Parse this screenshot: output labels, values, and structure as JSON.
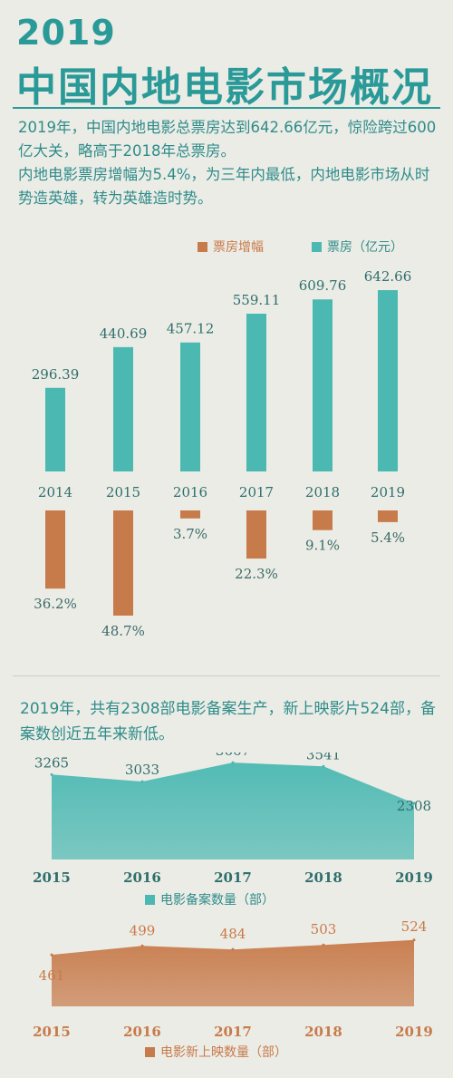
{
  "header": {
    "year": "2019",
    "title": "中国内地电影市场概况"
  },
  "intro": {
    "line1": "2019年，中国内地电影总票房达到642.66亿元，惊险跨过600亿大关，略高于2018年总票房。",
    "line2": "内地电影票房增幅为5.4%，为三年内最低，内地电影市场从时势造英雄，转为英雄造时势。"
  },
  "colors": {
    "teal": "#4bb8b2",
    "teal_dark": "#2a9a98",
    "orange": "#c77a4a"
  },
  "section2": {
    "text": "2019年，共有2308部电影备案生产，新上映影片524部，备案数创近五年来新低。"
  },
  "chart_data": [
    {
      "type": "bar",
      "legend_position": "top",
      "categories": [
        "2014",
        "2015",
        "2016",
        "2017",
        "2018",
        "2019"
      ],
      "series": [
        {
          "name": "票房（亿元）",
          "values": [
            296.39,
            440.69,
            457.12,
            559.11,
            609.76,
            642.66
          ],
          "labels": [
            "296.39",
            "440.69",
            "457.12",
            "559.11",
            "609.76",
            "642.66"
          ]
        },
        {
          "name": "票房增幅",
          "values": [
            36.2,
            48.7,
            3.7,
            22.3,
            9.1,
            5.4
          ],
          "labels": [
            "36.2%",
            "48.7%",
            "3.7%",
            "22.3%",
            "9.1%",
            "5.4%"
          ]
        }
      ]
    },
    {
      "type": "area",
      "categories": [
        "2015",
        "2016",
        "2017",
        "2018",
        "2019"
      ],
      "series": [
        {
          "name": "电影备案数量（部）",
          "values": [
            3265,
            3033,
            3667,
            3541,
            2308
          ],
          "labels": [
            "3265",
            "3033",
            "3667",
            "3541",
            "2308"
          ]
        }
      ]
    },
    {
      "type": "area",
      "categories": [
        "2015",
        "2016",
        "2017",
        "2018",
        "2019"
      ],
      "series": [
        {
          "name": "电影新上映数量（部）",
          "values": [
            461,
            499,
            484,
            503,
            524
          ],
          "labels": [
            "461",
            "499",
            "484",
            "503",
            "524"
          ]
        }
      ]
    }
  ]
}
